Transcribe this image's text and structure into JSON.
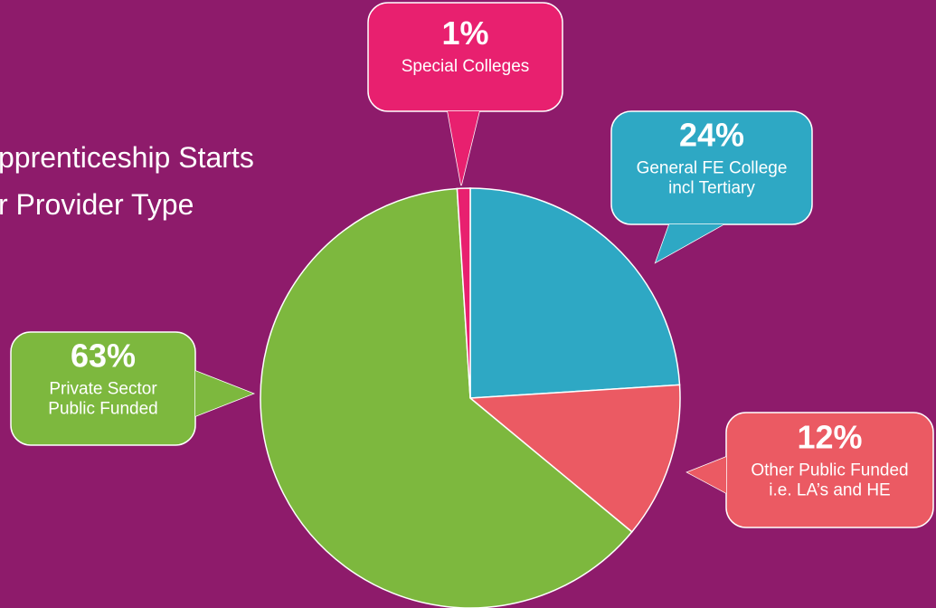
{
  "chart_data": {
    "type": "pie",
    "title_lines": [
      "pprenticeship Starts",
      "r Provider Type"
    ],
    "categories": [
      [
        "General FE College",
        "incl Tertiary"
      ],
      [
        "Other Public Funded",
        "i.e. LA’s and HE"
      ],
      [
        "Private Sector",
        "Public Funded"
      ],
      [
        "Special Colleges"
      ]
    ],
    "values": [
      24,
      12,
      63,
      1
    ],
    "value_labels": [
      "24%",
      "12%",
      "63%",
      "1%"
    ],
    "colors": [
      "#2ea8c4",
      "#eb5a63",
      "#7db83e",
      "#e8206f"
    ]
  }
}
